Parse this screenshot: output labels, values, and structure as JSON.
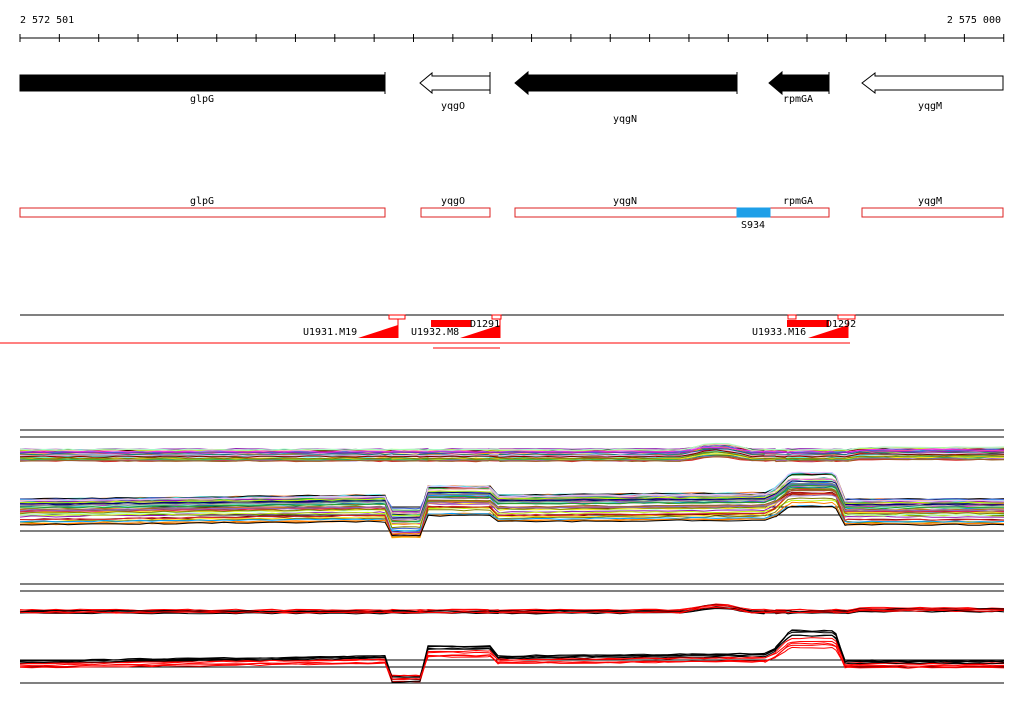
{
  "ruler": {
    "start_label": "2 572 501",
    "end_label": "2 575 000"
  },
  "colors": {
    "gene_fill": "#000000",
    "gene_outline": "#000000",
    "annot_box": "#dd2222",
    "segment": "#ff0000",
    "highlight": "#1e9fe8",
    "axis": "#000000"
  },
  "genes": [
    {
      "name": "glpG",
      "filled": true,
      "direction": "right"
    },
    {
      "name": "yqgO",
      "filled": false,
      "direction": "left"
    },
    {
      "name": "yqgN",
      "filled": true,
      "direction": "left"
    },
    {
      "name": "rpmGA",
      "filled": true,
      "direction": "left"
    },
    {
      "name": "yqgM",
      "filled": false,
      "direction": "left"
    }
  ],
  "annotation_boxes": [
    {
      "name": "glpG"
    },
    {
      "name": "yqgO"
    },
    {
      "name": "yqgN"
    },
    {
      "name": "rpmGA"
    },
    {
      "name": "yqgM"
    }
  ],
  "highlight_box": {
    "label": "S934"
  },
  "segments": [
    {
      "label": "U1931.M19"
    },
    {
      "label": "U1932.M8"
    },
    {
      "label": "D1291"
    },
    {
      "label": "U1933.M16"
    },
    {
      "label": "D1292"
    }
  ]
}
